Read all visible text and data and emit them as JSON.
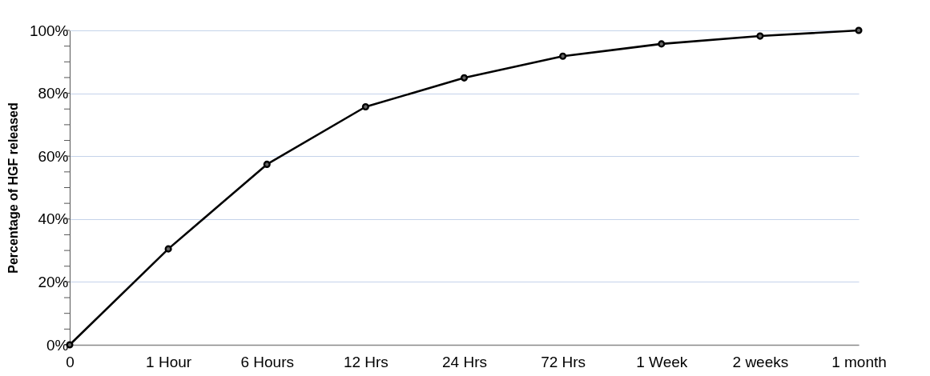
{
  "chart_data": {
    "type": "line",
    "ylabel": "Percentage of HGF released",
    "categories": [
      "0",
      "1 Hour",
      "6 Hours",
      "12 Hrs",
      "24 Hrs",
      "72 Hrs",
      "1 Week",
      "2 weeks",
      "1 month"
    ],
    "series": [
      {
        "color": "#000000",
        "values": [
          0,
          30.5,
          57.4,
          75.7,
          84.9,
          91.8,
          95.7,
          98.2,
          100
        ]
      }
    ],
    "ylim": [
      0,
      100
    ],
    "yticks": [
      {
        "value": 0,
        "label": "0%"
      },
      {
        "value": 5,
        "label": null
      },
      {
        "value": 10,
        "label": null
      },
      {
        "value": 15,
        "label": null
      },
      {
        "value": 20,
        "label": "20%"
      },
      {
        "value": 25,
        "label": null
      },
      {
        "value": 30,
        "label": null
      },
      {
        "value": 35,
        "label": null
      },
      {
        "value": 40,
        "label": "40%"
      },
      {
        "value": 45,
        "label": null
      },
      {
        "value": 50,
        "label": null
      },
      {
        "value": 55,
        "label": null
      },
      {
        "value": 60,
        "label": "60%"
      },
      {
        "value": 65,
        "label": null
      },
      {
        "value": 70,
        "label": null
      },
      {
        "value": 75,
        "label": null
      },
      {
        "value": 80,
        "label": "80%"
      },
      {
        "value": 85,
        "label": null
      },
      {
        "value": 90,
        "label": null
      },
      {
        "value": 95,
        "label": null
      },
      {
        "value": 100,
        "label": "100%"
      }
    ],
    "grid": "y",
    "marker": "circle",
    "line_style": "solid"
  }
}
